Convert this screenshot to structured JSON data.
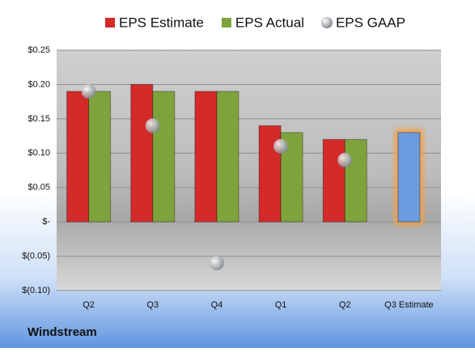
{
  "chart_data": {
    "type": "bar",
    "brand": "Windstream",
    "categories": [
      "Q2",
      "Q3",
      "Q4",
      "Q1",
      "Q2",
      "Q3 Estimate"
    ],
    "series": [
      {
        "name": "EPS Estimate",
        "color": "#d42a2a",
        "colors": [
          "#d42a2a",
          "#d42a2a",
          "#d42a2a",
          "#d42a2a",
          "#d42a2a",
          "#6b9be0"
        ],
        "values": [
          0.19,
          0.2,
          0.19,
          0.14,
          0.12,
          0.13
        ]
      },
      {
        "name": "EPS Actual",
        "color": "#7fa33c",
        "values": [
          0.19,
          0.19,
          0.19,
          0.13,
          0.12,
          null
        ]
      },
      {
        "name": "EPS GAAP",
        "type": "scatter",
        "color": "#a9afb8",
        "values": [
          0.19,
          0.14,
          -0.06,
          0.11,
          0.09,
          null
        ]
      }
    ],
    "ylim": [
      -0.1,
      0.25
    ],
    "yticks": [
      {
        "value": -0.1,
        "label": "$(0.10)"
      },
      {
        "value": -0.05,
        "label": "$(0.05)"
      },
      {
        "value": 0,
        "label": "$-"
      },
      {
        "value": 0.05,
        "label": "$0.05"
      },
      {
        "value": 0.1,
        "label": "$0.10"
      },
      {
        "value": 0.15,
        "label": "$0.15"
      },
      {
        "value": 0.2,
        "label": "$0.20"
      },
      {
        "value": 0.25,
        "label": "$0.25"
      }
    ],
    "grid": true
  }
}
